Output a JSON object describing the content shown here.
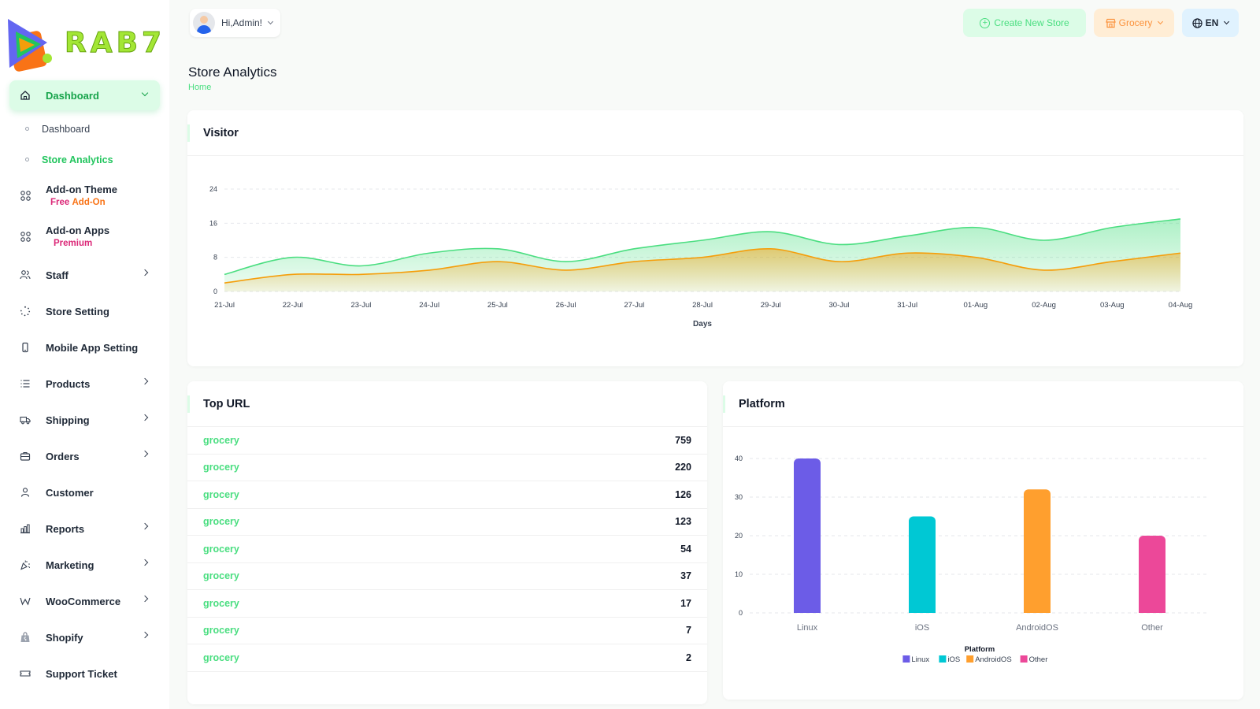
{
  "brand": {
    "logo_text": "RAB7"
  },
  "sidebar": {
    "dashboard_group": {
      "label": "Dashboard",
      "icon": "home-icon"
    },
    "subitems": [
      {
        "label": "Dashboard"
      },
      {
        "label": "Store Analytics"
      }
    ],
    "addon_theme": {
      "label": "Add-on Theme",
      "tag_a": "Free ",
      "tag_b": "Add-On",
      "icon": "grid-icon"
    },
    "addon_apps": {
      "label": "Add-on Apps",
      "tag": "Premium",
      "icon": "grid-icon"
    },
    "items": [
      {
        "label": "Staff",
        "icon": "users-icon",
        "chevron": true
      },
      {
        "label": "Store Setting",
        "icon": "spinner-icon",
        "chevron": false
      },
      {
        "label": "Mobile App Setting",
        "icon": "phone-icon",
        "chevron": false
      },
      {
        "label": "Products",
        "icon": "list-icon",
        "chevron": true
      },
      {
        "label": "Shipping",
        "icon": "truck-icon",
        "chevron": true
      },
      {
        "label": "Orders",
        "icon": "briefcase-icon",
        "chevron": true
      },
      {
        "label": "Customer",
        "icon": "user-icon",
        "chevron": false
      },
      {
        "label": "Reports",
        "icon": "bar-chart-icon",
        "chevron": true
      },
      {
        "label": "Marketing",
        "icon": "confetti-icon",
        "chevron": true
      },
      {
        "label": "WooCommerce",
        "icon": "woo-icon",
        "chevron": true
      },
      {
        "label": "Shopify",
        "icon": "shopify-bag-icon",
        "chevron": true
      },
      {
        "label": "Support Ticket",
        "icon": "ticket-icon",
        "chevron": false
      }
    ]
  },
  "topbar": {
    "greeting": "Hi,Admin!",
    "create_store": "Create New Store",
    "store_select": "Grocery",
    "language": "EN"
  },
  "page": {
    "title": "Store Analytics",
    "breadcrumb": "Home"
  },
  "visitor": {
    "title": "Visitor"
  },
  "top_url": {
    "title": "Top URL",
    "rows": [
      {
        "url": "grocery",
        "count": "759"
      },
      {
        "url": "grocery",
        "count": "220"
      },
      {
        "url": "grocery",
        "count": "126"
      },
      {
        "url": "grocery",
        "count": "123"
      },
      {
        "url": "grocery",
        "count": "54"
      },
      {
        "url": "grocery",
        "count": "37"
      },
      {
        "url": "grocery",
        "count": "17"
      },
      {
        "url": "grocery",
        "count": "7"
      },
      {
        "url": "grocery",
        "count": "2"
      }
    ]
  },
  "platform": {
    "title": "Platform"
  },
  "colors": {
    "accent_green": "#22c55e",
    "visitor_green": "#4ade80",
    "visitor_orange": "#f59e0b",
    "linux": "#6c5ce7",
    "ios": "#00c8d4",
    "android": "#ff9f2e",
    "other": "#ec4899"
  },
  "chart_data": [
    {
      "type": "area",
      "xlabel": "Days",
      "x": [
        "21-Jul",
        "22-Jul",
        "23-Jul",
        "24-Jul",
        "25-Jul",
        "26-Jul",
        "27-Jul",
        "28-Jul",
        "29-Jul",
        "30-Jul",
        "31-Jul",
        "01-Aug",
        "02-Aug",
        "03-Aug",
        "04-Aug"
      ],
      "yticks": [
        0,
        8,
        16,
        24
      ],
      "ylim": [
        0,
        24
      ],
      "grid": true,
      "series": [
        {
          "values": [
            4,
            8,
            6,
            9,
            10,
            7,
            10,
            12,
            14,
            11,
            13,
            15,
            12,
            15,
            17
          ],
          "color": "#4ade80"
        },
        {
          "values": [
            2,
            4,
            4,
            5,
            7,
            5,
            7,
            8,
            10,
            7,
            9,
            8,
            5,
            7,
            9
          ],
          "color": "#f59e0b"
        }
      ]
    },
    {
      "type": "bar",
      "title": "Platform",
      "categories": [
        "Linux",
        "iOS",
        "AndroidOS",
        "Other"
      ],
      "values": [
        40,
        25,
        32,
        20
      ],
      "colors": [
        "#6c5ce7",
        "#00c8d4",
        "#ff9f2e",
        "#ec4899"
      ],
      "yticks": [
        0,
        10,
        20,
        30,
        40
      ],
      "ylim": [
        0,
        40
      ],
      "grid": true,
      "legend": "bottom"
    }
  ]
}
